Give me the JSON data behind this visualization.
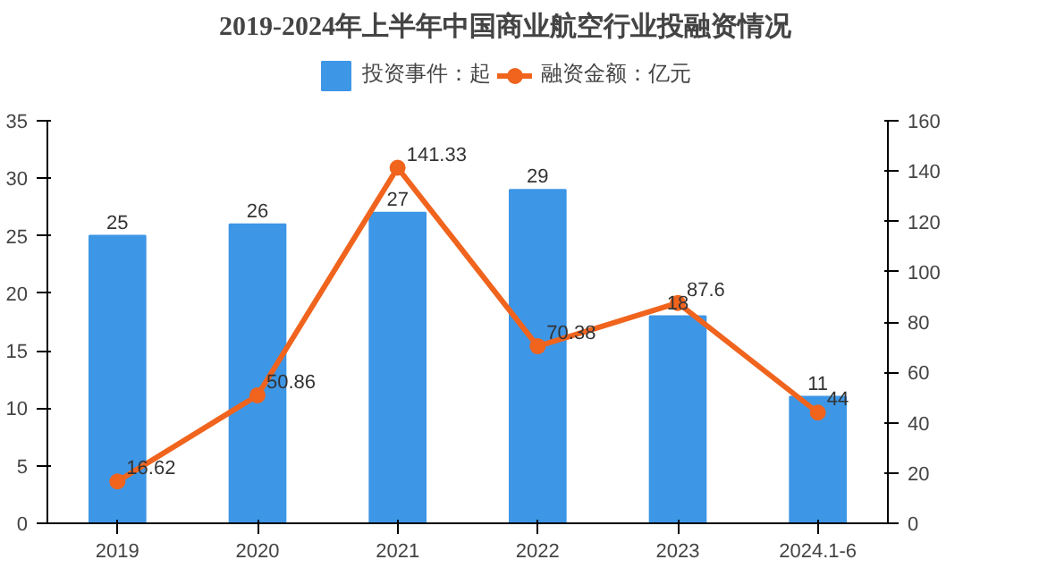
{
  "chart_data": {
    "type": "bar",
    "title": "2019-2024年上半年中国商业航空行业投融资情况",
    "categories": [
      "2019",
      "2020",
      "2021",
      "2022",
      "2023",
      "2024.1-6"
    ],
    "series": [
      {
        "name": "投资事件：起",
        "color": "#3d96e6",
        "values": [
          25,
          26,
          27,
          29,
          18,
          11
        ]
      },
      {
        "name": "融资金额：亿元",
        "type": "line",
        "axis": "y2",
        "color": "#f0641e",
        "marker": "circle",
        "values": [
          16.62,
          50.86,
          141.33,
          70.38,
          87.6,
          44
        ]
      }
    ],
    "ylim": [
      0,
      35
    ],
    "yticks": [
      0,
      5,
      10,
      15,
      20,
      25,
      30,
      35
    ],
    "y2lim": [
      0,
      160
    ],
    "y2ticks": [
      0,
      20,
      40,
      60,
      80,
      100,
      120,
      140,
      160
    ],
    "data_labels": true,
    "legend": "top",
    "grid": false
  }
}
